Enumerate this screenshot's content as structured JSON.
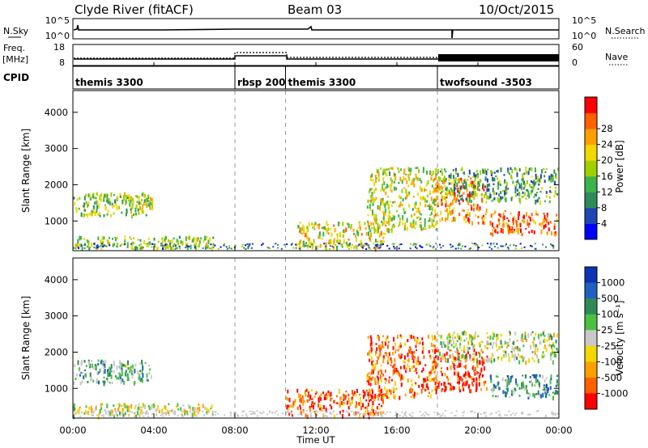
{
  "header": {
    "station": "Clyde River (fitACF)",
    "beam": "Beam 03",
    "date": "10/Oct/2015"
  },
  "status_panel": {
    "nsky_label": "N.Sky",
    "nsearch_label": "N.Search",
    "left_ticks": [
      "10^5",
      "10^0"
    ],
    "right_ticks": [
      "10^5",
      "10^0"
    ]
  },
  "freq_panel": {
    "freq_label_line1": "Freq.",
    "freq_label_line2": "[MHz]",
    "nave_label": "Nave",
    "left_ticks": [
      "18",
      "8"
    ],
    "right_ticks": [
      "60",
      "0"
    ]
  },
  "cpid_panel": {
    "label": "CPID",
    "segments": [
      {
        "name": "themis 3300",
        "start_hour": 0,
        "end_hour": 8
      },
      {
        "name": "rbsp 200",
        "start_hour": 8,
        "end_hour": 10.5
      },
      {
        "name": "themis 3300",
        "start_hour": 10.5,
        "end_hour": 18
      },
      {
        "name": "twofsound -3503",
        "start_hour": 18,
        "end_hour": 24
      }
    ]
  },
  "colors": {
    "power_scale": [
      "#0000ff",
      "#1e46b4",
      "#2e8b57",
      "#3cb44b",
      "#a0d000",
      "#f0d800",
      "#ffa000",
      "#ff6000",
      "#ff0000"
    ],
    "velocity_scale": [
      "#0c34b4",
      "#2060c0",
      "#2e8b57",
      "#4cc040",
      "#c8c8c8",
      "#f0d800",
      "#ffa000",
      "#ff6000",
      "#ff0000"
    ]
  },
  "chart_data": [
    {
      "type": "heatmap",
      "title": "",
      "xlabel": "",
      "ylabel": "Slant Range [km]",
      "xlim": [
        0,
        24
      ],
      "ylim": [
        180,
        4600
      ],
      "yticks": [
        "1000",
        "2000",
        "3000",
        "4000"
      ],
      "colorbar": {
        "label": "Power [dB]",
        "ticks": [
          "4",
          "8",
          "12",
          "16",
          "20",
          "24",
          "28"
        ]
      },
      "regions": [
        {
          "hours": [
            0.0,
            4.0
          ],
          "range_km": [
            1100,
            1800
          ],
          "level": 0.45
        },
        {
          "hours": [
            2.4,
            4.0
          ],
          "range_km": [
            1300,
            1750
          ],
          "level": 0.55
        },
        {
          "hours": [
            0.0,
            7.0
          ],
          "range_km": [
            200,
            600
          ],
          "level": 0.5
        },
        {
          "hours": [
            11.0,
            15.5
          ],
          "range_km": [
            200,
            1000
          ],
          "level": 0.6
        },
        {
          "hours": [
            14.5,
            18.0
          ],
          "range_km": [
            700,
            2500
          ],
          "level": 0.55
        },
        {
          "hours": [
            17.8,
            20.5
          ],
          "range_km": [
            900,
            2200
          ],
          "level": 0.75
        },
        {
          "hours": [
            20.5,
            24.0
          ],
          "range_km": [
            600,
            1300
          ],
          "level": 0.85
        },
        {
          "hours": [
            18.0,
            24.0
          ],
          "range_km": [
            1500,
            2500
          ],
          "level": 0.35
        }
      ]
    },
    {
      "type": "heatmap",
      "title": "",
      "xlabel": "Time UT",
      "ylabel": "Slant Range [km]",
      "xlim": [
        0,
        24
      ],
      "ylim": [
        180,
        4600
      ],
      "yticks": [
        "1000",
        "2000",
        "3000",
        "4000"
      ],
      "xticks": [
        "00:00",
        "04:00",
        "08:00",
        "12:00",
        "16:00",
        "20:00",
        "00:00"
      ],
      "colorbar": {
        "label": "Velocity [m s⁻¹]",
        "ticks": [
          "1000",
          "500",
          "100",
          "25",
          "-25",
          "-100",
          "-500",
          "-1000"
        ]
      },
      "regions": [
        {
          "hours": [
            0.0,
            4.0
          ],
          "range_km": [
            1100,
            1800
          ],
          "level": 0.35
        },
        {
          "hours": [
            0.0,
            7.0
          ],
          "range_km": [
            200,
            600
          ],
          "level": 0.55
        },
        {
          "hours": [
            10.5,
            15.5
          ],
          "range_km": [
            200,
            1000
          ],
          "level": 0.85
        },
        {
          "hours": [
            14.5,
            18.0
          ],
          "range_km": [
            700,
            2500
          ],
          "level": 0.8
        },
        {
          "hours": [
            17.8,
            20.5
          ],
          "range_km": [
            900,
            2100
          ],
          "level": 0.95
        },
        {
          "hours": [
            20.5,
            24.0
          ],
          "range_km": [
            700,
            1400
          ],
          "level": 0.3
        },
        {
          "hours": [
            18.0,
            24.0
          ],
          "range_km": [
            1700,
            2600
          ],
          "level": 0.5
        }
      ]
    }
  ]
}
